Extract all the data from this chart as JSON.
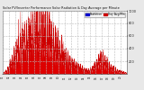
{
  "title": "Solar PV/Inverter Performance Solar Radiation & Day Average per Minute",
  "bg_color": "#e8e8e8",
  "plot_bg_color": "#ffffff",
  "grid_color": "#bbbbbb",
  "area_color": "#dd0000",
  "line_color": "#cc0000",
  "ylim": [
    0,
    1000
  ],
  "yticks": [
    200,
    400,
    600,
    800,
    1000
  ],
  "num_days": 60,
  "peak_values": [
    20,
    50,
    100,
    180,
    250,
    320,
    400,
    480,
    550,
    600,
    620,
    640,
    700,
    750,
    800,
    820,
    850,
    870,
    860,
    830,
    800,
    780,
    750,
    700,
    650,
    600,
    550,
    500,
    450,
    380,
    320,
    280,
    240,
    200,
    180,
    160,
    140,
    120,
    100,
    80,
    70,
    60,
    80,
    100,
    150,
    200,
    250,
    300,
    280,
    240,
    200,
    160,
    120,
    100,
    80,
    60,
    50,
    40,
    30,
    20
  ],
  "legend_items": [
    {
      "label": "Radiation",
      "color": "#0000cc"
    },
    {
      "label": "Day Avg/Min",
      "color": "#cc0000"
    }
  ],
  "figsize": [
    1.6,
    1.0
  ],
  "dpi": 100
}
